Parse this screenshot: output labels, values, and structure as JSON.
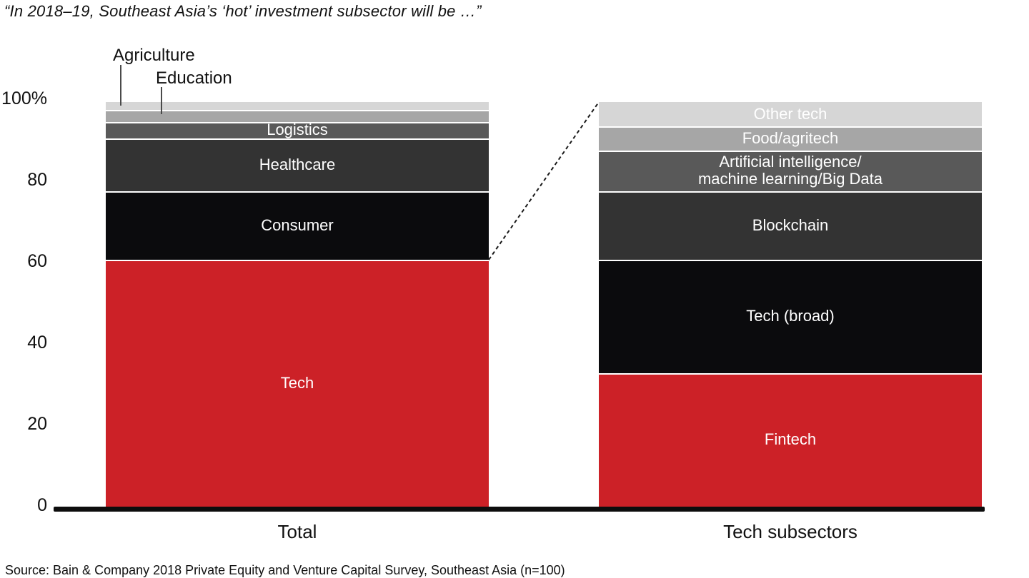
{
  "title": "“In 2018–19, Southeast Asia’s ‘hot’ investment subsector will be …”",
  "source": "Source: Bain & Company 2018 Private Equity and Venture Capital Survey, Southeast Asia (n=100)",
  "y_axis": {
    "ticks": [
      "100%",
      "80",
      "60",
      "40",
      "20",
      "0"
    ],
    "tick_values": [
      100,
      80,
      60,
      40,
      20,
      0
    ]
  },
  "colors": {
    "red": "#cc2127",
    "black": "#0b0b0d",
    "dark_gray": "#333333",
    "mid_gray": "#595959",
    "light_gray": "#a6a6a6",
    "lightest_gray": "#d6d6d6",
    "separator": "#ffffff",
    "axis_line": "#0d0d0d"
  },
  "chart_data": {
    "type": "bar",
    "subtype": "stacked-percent",
    "title": "“In 2018–19, Southeast Asia’s ‘hot’ investment subsector will be …”",
    "xlabel": "",
    "ylabel": "",
    "ylim": [
      0,
      100
    ],
    "grid": false,
    "legend": "none",
    "categories": [
      "Total",
      "Tech subsectors"
    ],
    "bars": [
      {
        "category": "Total",
        "segments": [
          {
            "label": "Tech",
            "value": 61,
            "color": "#cc2127",
            "label_placement": "inside"
          },
          {
            "label": "Consumer",
            "value": 17,
            "color": "#0b0b0d",
            "label_placement": "inside"
          },
          {
            "label": "Healthcare",
            "value": 13,
            "color": "#333333",
            "label_placement": "inside"
          },
          {
            "label": "Logistics",
            "value": 4,
            "color": "#595959",
            "label_placement": "inside"
          },
          {
            "label": "Education",
            "value": 3,
            "color": "#a6a6a6",
            "label_placement": "outside"
          },
          {
            "label": "Agriculture",
            "value": 2,
            "color": "#d6d6d6",
            "label_placement": "outside"
          }
        ]
      },
      {
        "category": "Tech subsectors",
        "segments": [
          {
            "label": "Fintech",
            "value": 33,
            "color": "#cc2127",
            "label_placement": "inside"
          },
          {
            "label": "Tech (broad)",
            "value": 28,
            "color": "#0b0b0d",
            "label_placement": "inside"
          },
          {
            "label": "Blockchain",
            "value": 17,
            "color": "#333333",
            "label_placement": "inside"
          },
          {
            "label": "Artificial intelligence/\nmachine learning/Big Data",
            "value": 10,
            "color": "#595959",
            "label_placement": "inside"
          },
          {
            "label": "Food/agritech",
            "value": 6,
            "color": "#a6a6a6",
            "label_placement": "inside"
          },
          {
            "label": "Other tech",
            "value": 6,
            "color": "#d6d6d6",
            "label_placement": "inside"
          }
        ]
      }
    ],
    "annotation_note": "Dashed line links top of Tech segment in Total bar to the Tech subsectors bar"
  }
}
